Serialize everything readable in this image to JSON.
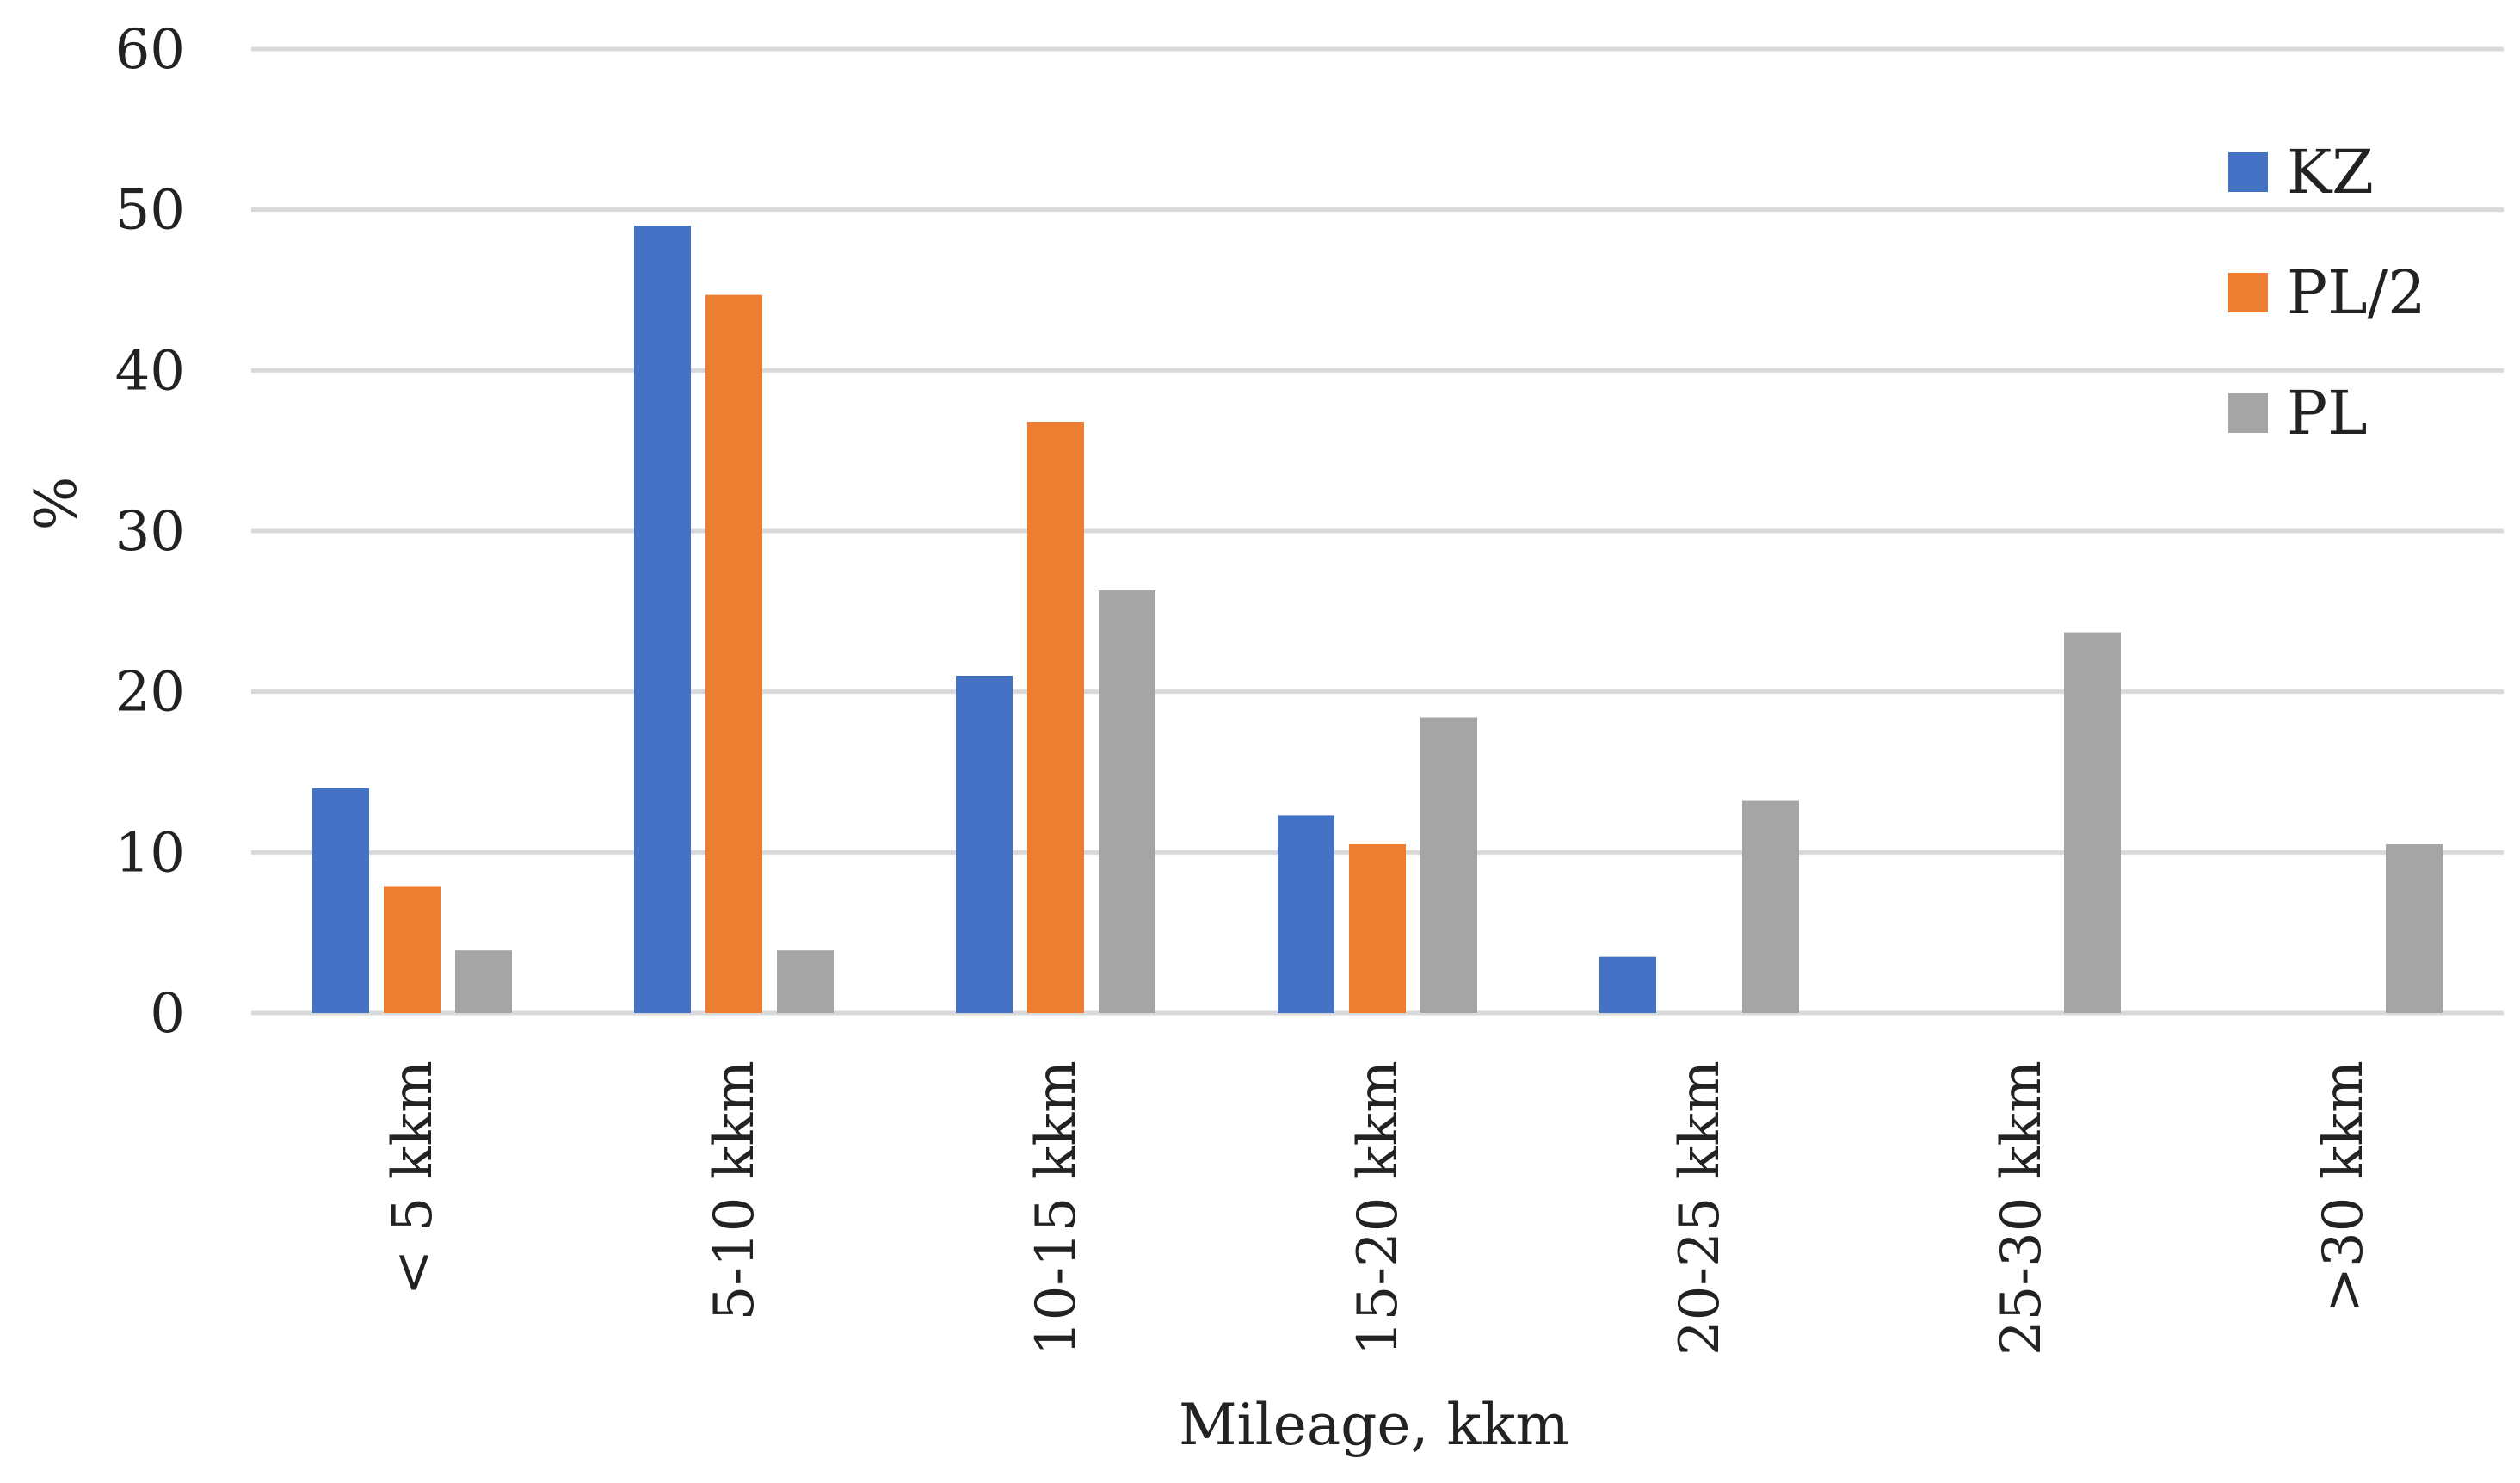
{
  "chart_data": {
    "type": "bar",
    "title": "",
    "xlabel": "Mileage, kkm",
    "ylabel": "%",
    "ylim": [
      0,
      60
    ],
    "yticks": [
      0,
      10,
      20,
      30,
      40,
      50,
      60
    ],
    "grid": true,
    "legend_position": "top-right",
    "categories": [
      "< 5 kkm",
      "5-10 kkm",
      "10-15 kkm",
      "15-20 kkm",
      "20-25 kkm",
      "25-30 kkm",
      ">30 kkm"
    ],
    "series": [
      {
        "name": "KZ",
        "color": "#4472C4",
        "values": [
          14.0,
          49.0,
          21.0,
          12.3,
          3.5,
          0,
          0
        ]
      },
      {
        "name": "PL/2",
        "color": "#ED7D31",
        "values": [
          7.9,
          44.7,
          36.8,
          10.5,
          0,
          0,
          0
        ]
      },
      {
        "name": "PL",
        "color": "#A5A5A5",
        "values": [
          3.9,
          3.9,
          26.3,
          18.4,
          13.2,
          23.7,
          10.5
        ]
      }
    ]
  }
}
